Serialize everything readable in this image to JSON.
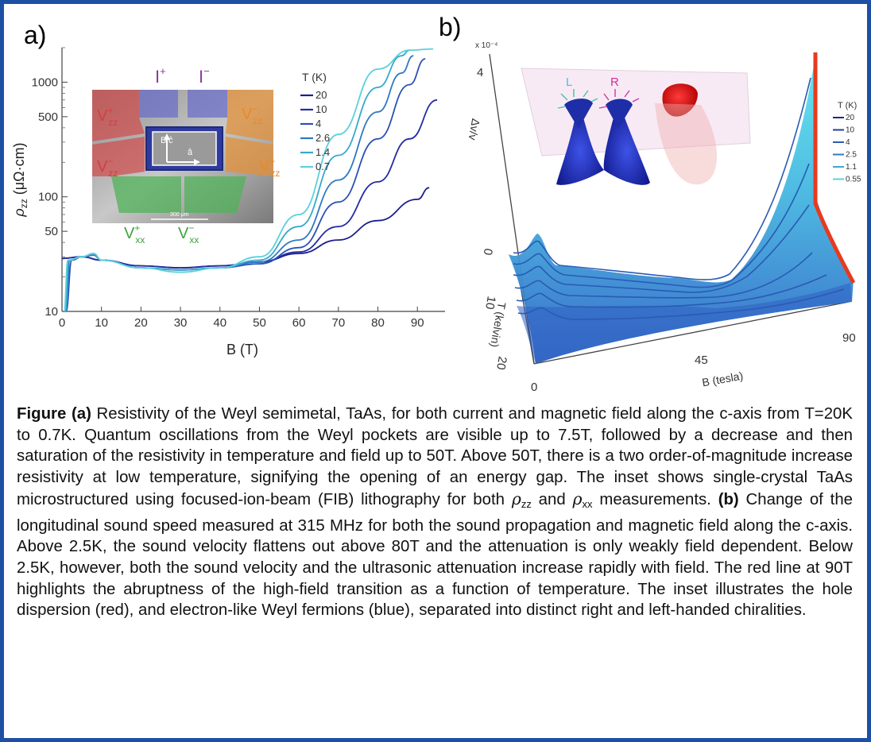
{
  "panel_labels": {
    "a": "a)",
    "b": "b)"
  },
  "chart_data": [
    {
      "panel": "a",
      "type": "line",
      "xlabel": "B (T)",
      "ylabel": "ρzz (μΩ·cm)",
      "ylabel_parts": {
        "rho": "ρ",
        "sub": "zz",
        "units": " (μΩ·cm)"
      },
      "xlim": [
        0,
        97
      ],
      "ylim": [
        10,
        2000
      ],
      "y_scale": "log",
      "x_ticks": [
        0,
        10,
        20,
        30,
        40,
        50,
        60,
        70,
        80,
        90
      ],
      "y_ticks": [
        10,
        50,
        100,
        500,
        1000
      ],
      "legend_title": "T (K)",
      "legend_position": "top-right",
      "series": [
        {
          "name": "20",
          "color": "#1c1f8c",
          "points": [
            [
              0,
              29
            ],
            [
              5,
              30
            ],
            [
              10,
              28
            ],
            [
              20,
              25
            ],
            [
              30,
              24
            ],
            [
              40,
              25
            ],
            [
              50,
              27
            ],
            [
              60,
              32
            ],
            [
              70,
              42
            ],
            [
              80,
              62
            ],
            [
              90,
              95
            ],
            [
              93,
              120
            ]
          ]
        },
        {
          "name": "10",
          "color": "#242ca5",
          "points": [
            [
              0,
              29
            ],
            [
              5,
              30
            ],
            [
              10,
              28
            ],
            [
              20,
              25
            ],
            [
              30,
              24
            ],
            [
              40,
              25
            ],
            [
              50,
              27
            ],
            [
              60,
              33
            ],
            [
              70,
              55
            ],
            [
              80,
              135
            ],
            [
              88,
              320
            ],
            [
              95,
              700
            ]
          ]
        },
        {
          "name": "4",
          "color": "#2b50b5",
          "points": [
            [
              1,
              10
            ],
            [
              2.5,
              28
            ],
            [
              5,
              30
            ],
            [
              8,
              31
            ],
            [
              10,
              28
            ],
            [
              20,
              24
            ],
            [
              30,
              23
            ],
            [
              40,
              24
            ],
            [
              50,
              26
            ],
            [
              60,
              36
            ],
            [
              70,
              90
            ],
            [
              80,
              320
            ],
            [
              88,
              950
            ],
            [
              92,
              1600
            ]
          ]
        },
        {
          "name": "2.6",
          "color": "#2f78c2",
          "points": [
            [
              1,
              10
            ],
            [
              2,
              28
            ],
            [
              5,
              30
            ],
            [
              8,
              31
            ],
            [
              10,
              28
            ],
            [
              20,
              24
            ],
            [
              30,
              23
            ],
            [
              40,
              24
            ],
            [
              50,
              27
            ],
            [
              60,
              42
            ],
            [
              70,
              140
            ],
            [
              80,
              550
            ],
            [
              86,
              1200
            ],
            [
              89,
              1700
            ]
          ]
        },
        {
          "name": "1.4",
          "color": "#38a8cc",
          "points": [
            [
              0.8,
              10
            ],
            [
              1.8,
              28
            ],
            [
              5,
              30
            ],
            [
              8,
              32
            ],
            [
              10,
              28
            ],
            [
              20,
              24
            ],
            [
              30,
              23
            ],
            [
              40,
              24
            ],
            [
              50,
              28
            ],
            [
              60,
              55
            ],
            [
              70,
              230
            ],
            [
              80,
              900
            ],
            [
              86,
              1700
            ],
            [
              88,
              1900
            ]
          ]
        },
        {
          "name": "0.7",
          "color": "#5ad0da",
          "points": [
            [
              0.5,
              10
            ],
            [
              1.5,
              28
            ],
            [
              5,
              30
            ],
            [
              8,
              32
            ],
            [
              10,
              28
            ],
            [
              20,
              24
            ],
            [
              30,
              22
            ],
            [
              40,
              24
            ],
            [
              50,
              30
            ],
            [
              60,
              70
            ],
            [
              70,
              350
            ],
            [
              80,
              1300
            ],
            [
              88,
              1900
            ],
            [
              94,
              1950
            ]
          ]
        }
      ],
      "inset_labels": [
        {
          "text": "I",
          "sup": "+",
          "color": "#8a3b9c"
        },
        {
          "text": "I",
          "sup": "−",
          "color": "#8a3b9c"
        },
        {
          "text": "V",
          "sup": "+",
          "sub": "zz",
          "color": "#d04040"
        },
        {
          "text": "V",
          "sup": "−",
          "sub": "zz",
          "color": "#d04040"
        },
        {
          "text": "V",
          "sup": "−",
          "sub": "zz",
          "color": "#e68a2a"
        },
        {
          "text": "V",
          "sup": "+",
          "sub": "zz",
          "color": "#e68a2a"
        },
        {
          "text": "V",
          "sup": "+",
          "sub": "xx",
          "color": "#3fa33f"
        },
        {
          "text": "V",
          "sup": "−",
          "sub": "xx",
          "color": "#3fa33f"
        },
        {
          "text": "B",
          "color": "#ffffff"
        },
        {
          "text": "ĉ",
          "color": "#ffffff"
        },
        {
          "text": "â",
          "color": "#ffffff"
        },
        {
          "text": "300 μm",
          "color": "#ffffff"
        }
      ]
    },
    {
      "panel": "b",
      "type": "area",
      "xlabel": "B (tesla)",
      "ylabel": "T (kelvin)",
      "zlabel": "Δv/v",
      "z_multiplier": "x 10⁻⁴",
      "x_ticks": [
        0,
        45,
        90
      ],
      "y_ticks": [
        0,
        10,
        20
      ],
      "z_ticks": [
        0,
        4
      ],
      "legend_title": "T (K)",
      "legend_position": "top-right",
      "series": [
        {
          "name": "20",
          "color": "#1c2a8c"
        },
        {
          "name": "10",
          "color": "#223fa0"
        },
        {
          "name": "4",
          "color": "#2a5ab5"
        },
        {
          "name": "2.5",
          "color": "#2f7ac2"
        },
        {
          "name": "1.1",
          "color": "#3ea7d0"
        },
        {
          "name": "0.55",
          "color": "#5cd2de"
        }
      ],
      "highlight_line": {
        "B": 90,
        "color": "#e83a1e"
      },
      "inset_labels": [
        {
          "text": "L",
          "color": "#39c8d8"
        },
        {
          "text": "R",
          "color": "#d0309a"
        }
      ]
    }
  ],
  "caption": {
    "a_label": "Figure (a)",
    "a_text_1": " Resistivity of the Weyl semimetal, TaAs, for both current and magnetic field along the c-axis from T=20K to 0.7K. Quantum oscillations from the Weyl pockets are visible up to 7.5T, followed by a decrease and then saturation of the resistivity in temperature and field up to 50T. Above 50T, there is a two order-of-magnitude increase resistivity at low temperature, signifying the opening of an energy gap. The inset shows single-crystal TaAs microstructured using focused-ion-beam (FIB) lithography for both ",
    "rho": "ρ",
    "sub_zz": "zz",
    "and": " and ",
    "sub_xx": "xx",
    "a_text_2": " measurements. ",
    "b_label": "(b)",
    "b_text": " Change of the longitudinal sound speed measured at 315 MHz for both the sound propagation and magnetic field along the c-axis. Above 2.5K, the sound velocity flattens out above 80T and the attenuation is only weakly field dependent. Below 2.5K, however, both the sound velocity and the ultrasonic attenuation increase rapidly with field. The red line at 90T highlights the abruptness of the high-field transition as a function of temperature. The inset illustrates the hole dispersion (red), and electron-like Weyl fermions (blue), separated into distinct right and left-handed chiralities."
  }
}
